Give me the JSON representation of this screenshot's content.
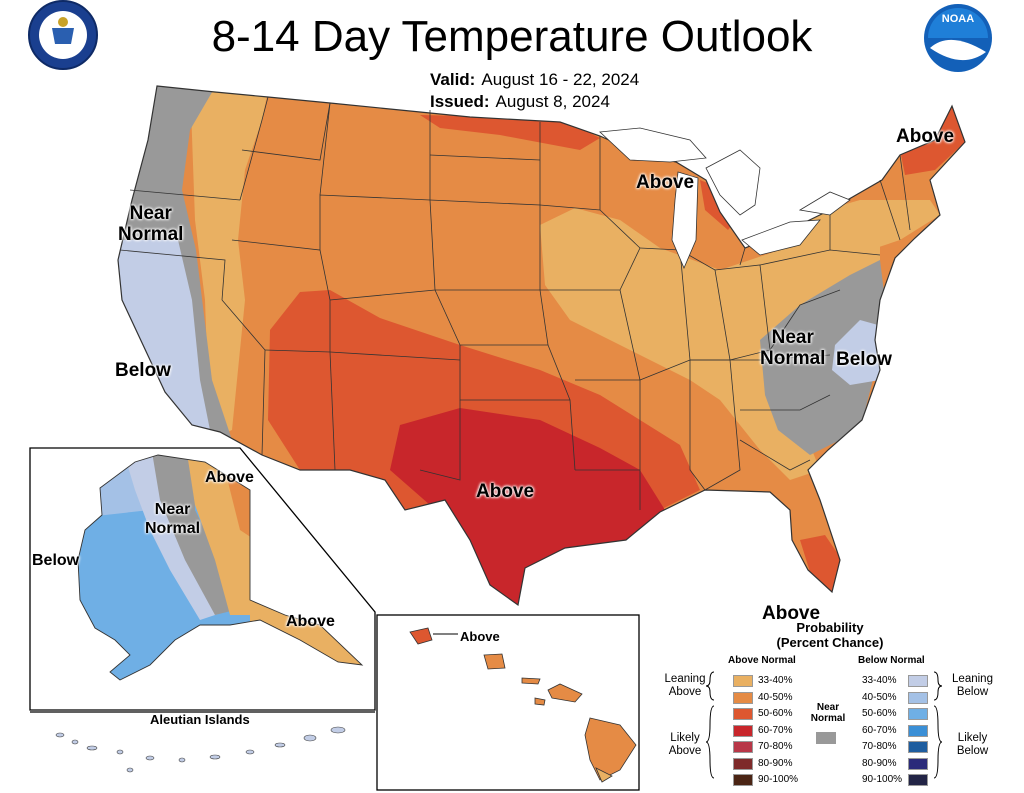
{
  "title": "8-14 Day Temperature Outlook",
  "valid": {
    "label": "Valid:",
    "value": "August 16 - 22, 2024"
  },
  "issued": {
    "label": "Issued:",
    "value": "August 8, 2024"
  },
  "logos": {
    "left": "department-of-commerce-seal",
    "right": "noaa-logo"
  },
  "map_labels": {
    "near_normal_west": "Near\nNormal",
    "below_west": "Below",
    "above_great_lakes": "Above",
    "above_northeast": "Above",
    "near_normal_east": "Near\nNormal",
    "below_east": "Below",
    "above_south": "Above",
    "above_florida": "Above",
    "ak_above_north": "Above",
    "ak_near_normal": "Near\nNormal",
    "ak_below": "Below",
    "ak_above_southeast": "Above",
    "hi_above": "Above",
    "aleutian": "Aleutian Islands"
  },
  "legend": {
    "title": "Probability\n(Percent Chance)",
    "above_header": "Above Normal",
    "below_header": "Below Normal",
    "near_normal": "Near\nNormal",
    "near_normal_color": "#999999",
    "leaning_above": "Leaning\nAbove",
    "likely_above": "Likely\nAbove",
    "leaning_below": "Leaning\nBelow",
    "likely_below": "Likely\nBelow",
    "above": [
      {
        "range": "33-40%",
        "color": "#e9b062"
      },
      {
        "range": "40-50%",
        "color": "#e58b45"
      },
      {
        "range": "50-60%",
        "color": "#dd5730"
      },
      {
        "range": "60-70%",
        "color": "#c8262b"
      },
      {
        "range": "70-80%",
        "color": "#b83748"
      },
      {
        "range": "80-90%",
        "color": "#7e2a2a"
      },
      {
        "range": "90-100%",
        "color": "#4a2414"
      }
    ],
    "below": [
      {
        "range": "33-40%",
        "color": "#c2cde6"
      },
      {
        "range": "40-50%",
        "color": "#a4c1e6"
      },
      {
        "range": "50-60%",
        "color": "#6fafe5"
      },
      {
        "range": "60-70%",
        "color": "#3a8fd6"
      },
      {
        "range": "70-80%",
        "color": "#1e5d9f"
      },
      {
        "range": "80-90%",
        "color": "#2b2b7a"
      },
      {
        "range": "90-100%",
        "color": "#222446"
      }
    ]
  },
  "colors": {
    "near_normal": "#999999",
    "lean_above": "#e9b062",
    "above_40": "#e58b45",
    "above_50": "#dd5730",
    "above_60": "#c8262b",
    "lean_below": "#c2cde6",
    "below_40": "#a4c1e6",
    "below_50": "#6fafe5",
    "border": "#333333"
  }
}
